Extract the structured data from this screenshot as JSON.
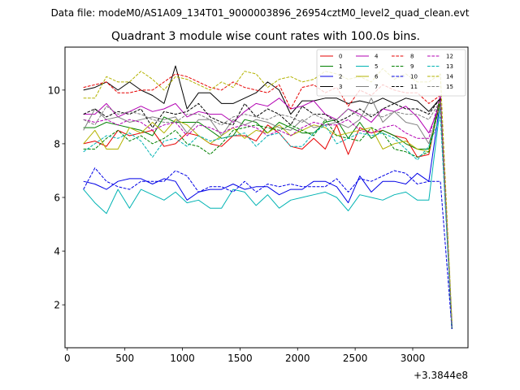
{
  "figure": {
    "suptitle": "Data file: modeM0/AS1A09_134T01_9000003896_26954cztM0_level2_quad_clean.evt"
  },
  "chart_data": {
    "type": "line",
    "title": "Quadrant 3 module wise count rates with 100.0s bins.",
    "xlabel": "",
    "ylabel": "",
    "x_offset_label": "+3.3844e8",
    "xlim": [
      -20,
      3480
    ],
    "ylim": [
      0.4,
      11.6
    ],
    "xticks": [
      0,
      500,
      1000,
      1500,
      2000,
      2500,
      3000
    ],
    "xtick_labels": [
      "0",
      "500",
      "1000",
      "1500",
      "2000",
      "2500",
      "3000"
    ],
    "yticks": [
      2,
      4,
      6,
      8,
      10
    ],
    "ytick_labels": [
      "2",
      "4",
      "6",
      "8",
      "10"
    ],
    "grid": false,
    "legend_position": "top-right",
    "x": [
      140,
      240,
      340,
      440,
      540,
      640,
      740,
      840,
      940,
      1040,
      1140,
      1240,
      1340,
      1440,
      1540,
      1640,
      1740,
      1840,
      1940,
      2040,
      2140,
      2240,
      2340,
      2440,
      2540,
      2640,
      2740,
      2840,
      2940,
      3040,
      3140,
      3240,
      3340
    ],
    "series": [
      {
        "name": "0",
        "color": "#e60000",
        "dash": "solid",
        "values": [
          8.0,
          8.1,
          7.9,
          8.5,
          8.3,
          8.4,
          8.5,
          7.9,
          8.0,
          8.4,
          8.3,
          8.0,
          7.9,
          8.3,
          8.3,
          8.1,
          8.7,
          8.4,
          7.9,
          7.8,
          8.2,
          7.8,
          8.7,
          7.6,
          8.6,
          8.4,
          8.5,
          8.3,
          8.2,
          7.5,
          7.6,
          9.7,
          1.1
        ]
      },
      {
        "name": "1",
        "color": "#008000",
        "dash": "solid",
        "values": [
          8.6,
          8.6,
          8.8,
          8.7,
          8.6,
          8.5,
          8.3,
          9.0,
          8.8,
          8.8,
          8.8,
          8.5,
          8.2,
          8.3,
          8.9,
          8.8,
          8.4,
          8.8,
          8.6,
          8.4,
          8.4,
          8.8,
          8.9,
          8.2,
          8.8,
          8.2,
          8.5,
          8.3,
          8.0,
          7.8,
          7.8,
          9.8,
          1.1
        ]
      },
      {
        "name": "2",
        "color": "#0000e6",
        "dash": "solid",
        "values": [
          6.6,
          6.5,
          6.3,
          6.6,
          6.7,
          6.7,
          6.5,
          6.7,
          6.6,
          5.9,
          6.2,
          6.3,
          6.3,
          6.5,
          6.3,
          6.4,
          6.4,
          6.1,
          6.3,
          6.3,
          6.6,
          6.6,
          6.4,
          5.8,
          6.8,
          6.2,
          6.6,
          6.6,
          6.5,
          6.9,
          6.6,
          9.6,
          1.1
        ]
      },
      {
        "name": "3",
        "color": "#000000",
        "dash": "solid",
        "values": [
          10.0,
          10.1,
          10.3,
          10.0,
          10.3,
          10.0,
          9.8,
          9.5,
          10.9,
          9.3,
          9.9,
          9.9,
          9.5,
          9.5,
          9.7,
          9.9,
          10.3,
          10.0,
          9.1,
          9.6,
          9.6,
          9.7,
          9.7,
          9.5,
          9.6,
          9.5,
          9.7,
          9.5,
          9.7,
          9.6,
          9.2,
          9.7,
          1.3
        ]
      },
      {
        "name": "4",
        "color": "#b300b3",
        "dash": "solid",
        "values": [
          9.1,
          9.1,
          9.5,
          9.0,
          9.2,
          9.4,
          9.2,
          9.3,
          9.5,
          9.0,
          9.2,
          9.1,
          9.1,
          8.8,
          9.2,
          9.5,
          9.4,
          9.7,
          9.3,
          9.4,
          9.6,
          9.1,
          8.9,
          9.3,
          9.1,
          8.8,
          9.3,
          9.2,
          9.4,
          9.0,
          8.4,
          9.5,
          1.2
        ]
      },
      {
        "name": "5",
        "color": "#00b3b3",
        "dash": "solid",
        "values": [
          6.3,
          5.8,
          5.4,
          6.3,
          5.6,
          6.3,
          6.1,
          5.9,
          6.2,
          5.8,
          5.9,
          5.6,
          5.6,
          6.3,
          6.2,
          5.7,
          6.1,
          5.6,
          5.9,
          6.0,
          6.1,
          6.2,
          6.0,
          5.5,
          6.1,
          6.0,
          5.9,
          6.1,
          6.2,
          5.9,
          5.9,
          9.4,
          1.2
        ]
      },
      {
        "name": "6",
        "color": "#b3b300",
        "dash": "solid",
        "values": [
          8.0,
          8.5,
          7.8,
          7.8,
          8.6,
          8.4,
          8.8,
          8.4,
          8.9,
          8.7,
          8.3,
          8.0,
          8.3,
          8.6,
          8.2,
          8.5,
          8.4,
          8.7,
          8.3,
          8.5,
          8.7,
          8.6,
          8.3,
          8.4,
          8.5,
          8.6,
          7.8,
          8.0,
          8.1,
          7.8,
          7.7,
          9.6,
          1.4
        ]
      },
      {
        "name": "7",
        "color": "#808080",
        "dash": "solid",
        "values": [
          8.5,
          9.3,
          8.9,
          9.0,
          8.8,
          8.9,
          9.0,
          8.9,
          9.0,
          8.4,
          8.9,
          8.9,
          8.3,
          8.9,
          8.7,
          8.9,
          8.8,
          8.6,
          8.5,
          8.9,
          8.6,
          8.7,
          8.8,
          8.6,
          8.9,
          9.7,
          8.8,
          9.2,
          8.8,
          8.7,
          8.0,
          9.4,
          1.3
        ]
      },
      {
        "name": "8",
        "color": "#e60000",
        "dash": "dashed",
        "values": [
          10.1,
          10.2,
          10.3,
          9.9,
          9.9,
          10.0,
          10.0,
          10.3,
          10.6,
          10.5,
          10.3,
          10.1,
          10.0,
          10.3,
          10.1,
          10.0,
          9.9,
          10.2,
          9.3,
          10.1,
          10.2,
          9.9,
          10.1,
          9.4,
          10.0,
          9.8,
          10.2,
          10.0,
          9.9,
          9.9,
          9.5,
          9.8,
          1.2
        ]
      },
      {
        "name": "9",
        "color": "#008000",
        "dash": "dashed",
        "values": [
          7.8,
          7.8,
          8.2,
          8.5,
          8.1,
          8.3,
          8.0,
          8.2,
          8.5,
          8.0,
          7.9,
          7.6,
          8.0,
          8.5,
          8.6,
          8.7,
          8.6,
          8.5,
          8.7,
          8.5,
          8.3,
          8.9,
          8.3,
          8.2,
          8.1,
          8.6,
          8.4,
          7.8,
          7.7,
          7.5,
          7.7,
          9.6,
          1.1
        ]
      },
      {
        "name": "10",
        "color": "#0000e6",
        "dash": "dashed",
        "values": [
          6.3,
          7.1,
          6.6,
          6.4,
          6.3,
          6.6,
          6.6,
          6.6,
          7.0,
          6.8,
          6.2,
          6.4,
          6.4,
          6.2,
          6.6,
          6.2,
          6.5,
          6.4,
          6.5,
          6.4,
          6.4,
          6.4,
          6.7,
          6.2,
          6.7,
          6.6,
          6.8,
          7.0,
          6.9,
          6.5,
          6.6,
          6.6,
          1.1
        ]
      },
      {
        "name": "11",
        "color": "#000000",
        "dash": "dashed",
        "values": [
          9.1,
          9.3,
          9.0,
          9.2,
          9.1,
          9.3,
          8.6,
          9.2,
          9.1,
          9.2,
          9.5,
          9.0,
          8.8,
          8.7,
          9.5,
          9.0,
          9.3,
          9.1,
          8.7,
          9.4,
          9.1,
          9.1,
          8.8,
          9.0,
          9.3,
          9.0,
          9.3,
          9.5,
          9.3,
          9.3,
          9.1,
          9.7,
          1.2
        ]
      },
      {
        "name": "12",
        "color": "#b300b3",
        "dash": "dashed",
        "values": [
          8.9,
          8.8,
          8.9,
          8.7,
          8.9,
          8.8,
          8.5,
          8.7,
          8.8,
          8.3,
          8.7,
          8.6,
          8.4,
          8.6,
          8.7,
          8.6,
          8.3,
          8.5,
          8.3,
          8.6,
          8.8,
          8.7,
          8.7,
          8.9,
          8.5,
          8.4,
          8.6,
          8.7,
          8.4,
          8.2,
          8.2,
          9.8,
          1.3
        ]
      },
      {
        "name": "13",
        "color": "#00b3b3",
        "dash": "dashed",
        "values": [
          7.7,
          8.0,
          8.3,
          8.2,
          8.4,
          8.1,
          7.5,
          8.1,
          8.2,
          7.9,
          8.3,
          8.1,
          8.2,
          8.3,
          8.4,
          7.9,
          8.3,
          8.4,
          7.9,
          7.9,
          8.4,
          8.7,
          8.0,
          8.2,
          8.4,
          8.3,
          8.4,
          8.2,
          7.8,
          7.4,
          7.9,
          9.0,
          1.2
        ]
      },
      {
        "name": "14",
        "color": "#b3b300",
        "dash": "dashed",
        "values": [
          9.7,
          9.7,
          10.5,
          10.3,
          10.3,
          10.7,
          10.4,
          10.0,
          10.5,
          10.4,
          10.2,
          10.0,
          10.3,
          10.1,
          10.7,
          10.6,
          10.1,
          10.4,
          10.5,
          10.3,
          10.4,
          10.7,
          10.6,
          10.4,
          10.5,
          10.3,
          10.8,
          10.4,
          10.6,
          10.3,
          10.3,
          10.6,
          1.4
        ]
      },
      {
        "name": "15",
        "color": "#808080",
        "dash": "dashed",
        "values": [
          8.9,
          8.7,
          9.4,
          9.1,
          9.2,
          9.1,
          8.9,
          8.8,
          8.8,
          9.1,
          9.1,
          8.9,
          8.7,
          9.0,
          9.1,
          9.0,
          8.9,
          9.1,
          9.0,
          8.8,
          9.1,
          8.9,
          8.9,
          9.3,
          9.0,
          9.1,
          9.0,
          9.2,
          9.1,
          9.1,
          8.9,
          9.6,
          1.3
        ]
      }
    ]
  }
}
